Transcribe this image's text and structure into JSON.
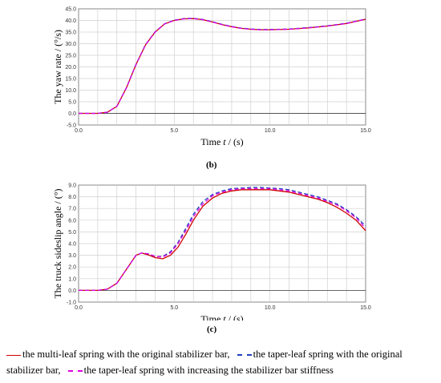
{
  "chart_data": [
    {
      "type": "line",
      "panel": "(b)",
      "xlabel_prefix": "Time ",
      "xlabel_var": "t",
      "xlabel_suffix": " / (s)",
      "ylabel": "The yaw rate / (°/s)",
      "xlim": [
        0,
        15
      ],
      "ylim": [
        -5,
        45
      ],
      "xticks": [
        "0.0",
        "5.0",
        "10.0",
        "15.0"
      ],
      "yticks": [
        "-5.0",
        "0.0",
        "5.0",
        "10.0",
        "15.0",
        "20.0",
        "25.0",
        "30.0",
        "35.0",
        "40.0",
        "45.0"
      ],
      "grid": true,
      "series": [
        {
          "x": [
            0,
            1,
            1.5,
            2,
            2.5,
            3,
            3.5,
            4,
            4.5,
            5,
            5.5,
            6,
            6.5,
            7,
            7.5,
            8,
            8.5,
            9,
            9.5,
            10,
            11,
            12,
            13,
            14,
            15
          ],
          "y": [
            0,
            0,
            0.5,
            3,
            11,
            21,
            29.5,
            35,
            38.5,
            40,
            40.7,
            40.8,
            40.3,
            39.3,
            38.2,
            37.3,
            36.6,
            36.2,
            36,
            36,
            36.2,
            36.8,
            37.6,
            38.7,
            40.5
          ],
          "color": "#cc0000",
          "dash": "none"
        },
        {
          "x": [
            0,
            1,
            1.5,
            2,
            2.5,
            3,
            3.5,
            4,
            4.5,
            5,
            5.5,
            6,
            6.5,
            7,
            7.5,
            8,
            8.5,
            9,
            9.5,
            10,
            11,
            12,
            13,
            14,
            15
          ],
          "y": [
            0,
            0,
            0.5,
            3,
            11.1,
            21.1,
            29.6,
            35.1,
            38.6,
            40.1,
            40.8,
            40.9,
            40.4,
            39.4,
            38.3,
            37.4,
            36.7,
            36.3,
            36.1,
            36.1,
            36.3,
            36.9,
            37.7,
            38.8,
            40.6
          ],
          "color": "#1f3fbf",
          "dash": "5,3"
        },
        {
          "x": [
            0,
            1,
            1.5,
            2,
            2.5,
            3,
            3.5,
            4,
            4.5,
            5,
            5.5,
            6,
            6.5,
            7,
            7.5,
            8,
            8.5,
            9,
            9.5,
            10,
            11,
            12,
            13,
            14,
            15
          ],
          "y": [
            0,
            0,
            0.5,
            3,
            11,
            21,
            29.5,
            35,
            38.5,
            40,
            40.7,
            40.8,
            40.3,
            39.3,
            38.2,
            37.3,
            36.6,
            36.2,
            36,
            36,
            36.2,
            36.8,
            37.6,
            38.7,
            40.5
          ],
          "color": "#e000e0",
          "dash": "5,3"
        }
      ]
    },
    {
      "type": "line",
      "panel": "(c)",
      "xlabel_prefix": "Time ",
      "xlabel_var": "t",
      "xlabel_suffix": " / (s)",
      "ylabel": "The truck sideslip angle / (°)",
      "xlim": [
        0,
        15
      ],
      "ylim": [
        -1,
        9
      ],
      "xticks": [
        "0.0",
        "5.0",
        "10.0",
        "15.0"
      ],
      "yticks": [
        "-1.0",
        "0.0",
        "1.0",
        "2.0",
        "3.0",
        "4.0",
        "5.0",
        "6.0",
        "7.0",
        "8.0",
        "9.0"
      ],
      "grid": true,
      "series": [
        {
          "x": [
            0,
            1,
            1.5,
            2,
            2.5,
            3,
            3.3,
            3.7,
            4,
            4.4,
            4.8,
            5.2,
            5.6,
            6,
            6.5,
            7,
            7.5,
            8,
            8.5,
            9,
            9.5,
            10,
            10.5,
            11,
            11.5,
            12,
            12.5,
            13,
            13.5,
            14,
            14.5,
            15
          ],
          "y": [
            0,
            0,
            0.1,
            0.6,
            1.8,
            3.0,
            3.2,
            3.0,
            2.8,
            2.7,
            3.0,
            3.7,
            4.8,
            6.0,
            7.2,
            7.9,
            8.3,
            8.5,
            8.6,
            8.6,
            8.6,
            8.6,
            8.5,
            8.4,
            8.2,
            8.0,
            7.8,
            7.5,
            7.1,
            6.6,
            6.0,
            5.1
          ],
          "color": "#cc0000",
          "dash": "none"
        },
        {
          "x": [
            0,
            1,
            1.5,
            2,
            2.5,
            3,
            3.3,
            3.7,
            4,
            4.4,
            4.8,
            5.2,
            5.6,
            6,
            6.5,
            7,
            7.5,
            8,
            8.5,
            9,
            9.5,
            10,
            10.5,
            11,
            11.5,
            12,
            12.5,
            13,
            13.5,
            14,
            14.5,
            15
          ],
          "y": [
            0,
            0,
            0.1,
            0.6,
            1.8,
            3.0,
            3.2,
            3.1,
            2.9,
            2.9,
            3.3,
            4.1,
            5.3,
            6.5,
            7.6,
            8.2,
            8.5,
            8.7,
            8.75,
            8.8,
            8.8,
            8.75,
            8.7,
            8.6,
            8.4,
            8.2,
            8.0,
            7.7,
            7.4,
            6.9,
            6.3,
            5.5
          ],
          "color": "#1f3fbf",
          "dash": "5,3"
        },
        {
          "x": [
            0,
            1,
            1.5,
            2,
            2.5,
            3,
            3.3,
            3.7,
            4,
            4.4,
            4.8,
            5.2,
            5.6,
            6,
            6.5,
            7,
            7.5,
            8,
            8.5,
            9,
            9.5,
            10,
            10.5,
            11,
            11.5,
            12,
            12.5,
            13,
            13.5,
            14,
            14.5,
            15
          ],
          "y": [
            0,
            0,
            0.1,
            0.6,
            1.8,
            3.0,
            3.2,
            3.1,
            2.9,
            2.85,
            3.2,
            4.0,
            5.1,
            6.3,
            7.4,
            8.1,
            8.4,
            8.6,
            8.7,
            8.7,
            8.7,
            8.7,
            8.6,
            8.5,
            8.3,
            8.1,
            7.9,
            7.6,
            7.3,
            6.8,
            6.2,
            5.3
          ],
          "color": "#e000e0",
          "dash": "5,3"
        }
      ]
    }
  ],
  "legend": {
    "item1": "the multi-leaf spring with the original stabilizer bar,",
    "item2": "the taper-leaf spring with the original stabilizer bar,",
    "item3": "the taper-leaf spring with increasing the stabilizer bar stiffness"
  },
  "panel_labels": {
    "b": "(b)",
    "c": "(c)"
  }
}
